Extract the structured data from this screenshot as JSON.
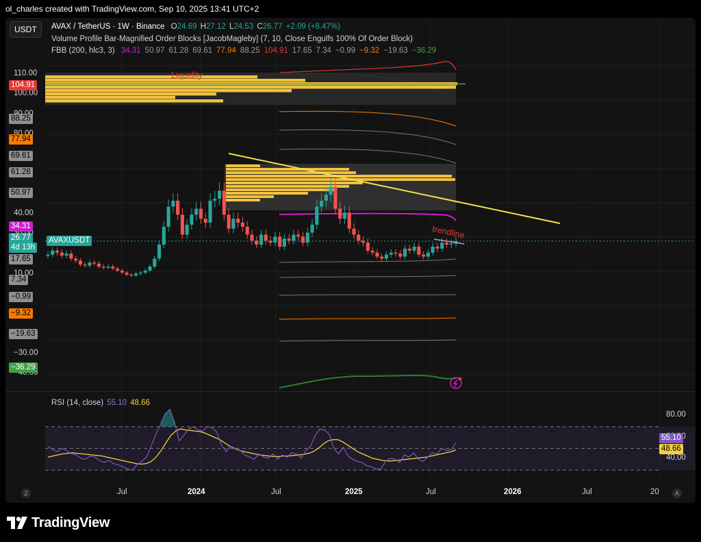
{
  "header": {
    "author_line": "ol_charles created with TradingView.com, Sep 10, 2025 13:41 UTC+2"
  },
  "symbol_button": "USDT",
  "legend": {
    "symbol": "AVAX / TetherUS · 1W · Binance",
    "o_label": "O",
    "o": "24.69",
    "h_label": "H",
    "h": "27.12",
    "l_label": "L",
    "l": "24.53",
    "c_label": "C",
    "c": "26.77",
    "change": "+2.09 (+8.47%)",
    "indicator2": "Volume Profile Bar-Magnified Order Blocks [JacobMagleby] (7, 10, Close Engulfs 100% Of Order Block)",
    "fbb_name": "FBB (200, hlc3, 3)",
    "fbb_values": [
      {
        "v": "34.31",
        "c": "#c91fd0"
      },
      {
        "v": "50.97",
        "c": "#9a9a9a"
      },
      {
        "v": "61.28",
        "c": "#9a9a9a"
      },
      {
        "v": "69.61",
        "c": "#9a9a9a"
      },
      {
        "v": "77.94",
        "c": "#f57c00"
      },
      {
        "v": "88.25",
        "c": "#9a9a9a"
      },
      {
        "v": "104.91",
        "c": "#e53935"
      },
      {
        "v": "17.65",
        "c": "#9a9a9a"
      },
      {
        "v": "7.34",
        "c": "#9a9a9a"
      },
      {
        "v": "−0.99",
        "c": "#9a9a9a"
      },
      {
        "v": "−9.32",
        "c": "#f57c00"
      },
      {
        "v": "−19.63",
        "c": "#9a9a9a"
      },
      {
        "v": "−36.29",
        "c": "#43a047"
      }
    ]
  },
  "annotations": {
    "liquidity": "Liquidity",
    "trendline": "trendline"
  },
  "y_axis_labels": [
    {
      "text": "110.00",
      "v": 110
    },
    {
      "text": "100.00",
      "v": 100
    },
    {
      "text": "90.00",
      "v": 90
    },
    {
      "text": "80.00",
      "v": 80
    },
    {
      "text": "40.00",
      "v": 40
    },
    {
      "text": "30.00",
      "v": 30
    },
    {
      "text": "10.00",
      "v": 10
    },
    {
      "text": "−30.00",
      "v": -30
    },
    {
      "text": "−40.00",
      "v": -40
    }
  ],
  "price_badges": [
    {
      "text": "104.91",
      "v": 104.91,
      "bg": "#e53935",
      "fg": "#ffffff"
    },
    {
      "text": "88.25",
      "v": 88.25,
      "bg": "#8f8f8f",
      "fg": "#000000"
    },
    {
      "text": "77.94",
      "v": 77.94,
      "bg": "#f57c00",
      "fg": "#000000"
    },
    {
      "text": "69.61",
      "v": 69.61,
      "bg": "#8f8f8f",
      "fg": "#000000"
    },
    {
      "text": "61.28",
      "v": 61.28,
      "bg": "#8f8f8f",
      "fg": "#000000"
    },
    {
      "text": "50.97",
      "v": 50.97,
      "bg": "#8f8f8f",
      "fg": "#000000"
    },
    {
      "text": "34.31",
      "v": 34.31,
      "bg": "#c91fd0",
      "fg": "#ffffff"
    },
    {
      "text": "17.65",
      "v": 17.65,
      "bg": "#8f8f8f",
      "fg": "#000000"
    },
    {
      "text": "7.34",
      "v": 7.34,
      "bg": "#8f8f8f",
      "fg": "#000000"
    },
    {
      "text": "−0.99",
      "v": -0.99,
      "bg": "#8f8f8f",
      "fg": "#000000"
    },
    {
      "text": "−9.32",
      "v": -9.32,
      "bg": "#f57c00",
      "fg": "#000000"
    },
    {
      "text": "−19.63",
      "v": -19.63,
      "bg": "#8f8f8f",
      "fg": "#000000"
    },
    {
      "text": "−36.29",
      "v": -36.29,
      "bg": "#43a047",
      "fg": "#ffffff"
    }
  ],
  "last_price": {
    "price": "26.77",
    "countdown": "4d 13h",
    "symbol_tag": "AVAXUSDT",
    "bg": "#26a69a"
  },
  "rsi": {
    "name": "RSI (14, close)",
    "value": "55.10",
    "ma": "48.66",
    "axis_labels": [
      {
        "text": "80.00",
        "v": 80
      },
      {
        "text": "60.00",
        "v": 60
      },
      {
        "text": "40.00",
        "v": 40
      }
    ]
  },
  "x_axis": [
    {
      "text": "Jul",
      "bold": false
    },
    {
      "text": "2024",
      "bold": true
    },
    {
      "text": "Jul",
      "bold": false
    },
    {
      "text": "2025",
      "bold": true
    },
    {
      "text": "Jul",
      "bold": false
    },
    {
      "text": "2026",
      "bold": true
    },
    {
      "text": "Jul",
      "bold": false
    },
    {
      "text": "20",
      "bold": false
    }
  ],
  "corner_left": "Z",
  "corner_right": "A",
  "brand": "TradingView",
  "chart_data": {
    "type": "candlestick",
    "symbol": "AVAXUSDT",
    "timeframe": "1W",
    "price_range": [
      -45,
      118
    ],
    "grid": true,
    "closes": [
      20,
      22,
      21,
      19.5,
      20.5,
      18,
      17,
      15,
      14.5,
      16,
      15.5,
      14,
      13.5,
      14,
      13,
      12,
      11,
      10,
      9.5,
      10.5,
      11,
      12,
      14,
      18,
      25,
      34,
      44,
      47,
      40,
      30,
      35,
      40,
      43,
      38,
      36,
      47,
      48,
      52,
      40,
      33,
      38,
      36,
      34,
      30,
      27,
      25,
      30,
      27,
      26,
      29,
      24,
      28,
      27,
      30,
      29,
      26,
      31,
      35,
      44,
      47,
      50,
      54,
      43,
      38,
      41,
      33,
      30,
      27,
      26,
      22,
      21,
      19,
      18,
      20,
      21,
      20.5,
      19,
      23,
      22,
      24,
      20,
      19,
      21,
      24,
      23,
      26,
      25,
      25.5,
      26.77
    ],
    "levels": {
      "liquidity_line": 105.5,
      "trendline": {
        "from": {
          "date": "2024-03",
          "price": 63
        },
        "to": {
          "date": "2026-06",
          "price": 35
        }
      }
    },
    "rsi_series": [
      52,
      49,
      47,
      50,
      48,
      45,
      44,
      41,
      40,
      43,
      42,
      39,
      37,
      39,
      36,
      35,
      33,
      31,
      30,
      35,
      38,
      42,
      52,
      63,
      72,
      82,
      86,
      74,
      57,
      62,
      68,
      70,
      67,
      66,
      70,
      69,
      65,
      53,
      47,
      52,
      50,
      48,
      44,
      42,
      40,
      45,
      42,
      41,
      45,
      40,
      44,
      42,
      46,
      45,
      41,
      48,
      52,
      62,
      68,
      67,
      63,
      50,
      45,
      51,
      43,
      40,
      38,
      37,
      34,
      33,
      31,
      31,
      38,
      41,
      40,
      37,
      44,
      42,
      46,
      40,
      38,
      42,
      46,
      45,
      50,
      48,
      49,
      55.1
    ],
    "rsi_ma_series": [
      42,
      43,
      44,
      45,
      45.5,
      46,
      45.5,
      45,
      44.5,
      44,
      43.5,
      43,
      42,
      41,
      40,
      39,
      38,
      37,
      36,
      35.5,
      36,
      38,
      42,
      48,
      55,
      62,
      66,
      68,
      67,
      66.5,
      66,
      65.5,
      64,
      62,
      60,
      58,
      55,
      52,
      50,
      48,
      47,
      46,
      45,
      44,
      43.5,
      43,
      42.5,
      42.5,
      43,
      43,
      43.5,
      44,
      44.5,
      45.5,
      47,
      50,
      54,
      57,
      58,
      58,
      56,
      53,
      50,
      47,
      45,
      43,
      41,
      40,
      39,
      38.5,
      38.5,
      39,
      39.5,
      40,
      40.5,
      41,
      41.5,
      42,
      43,
      44,
      45,
      46,
      47,
      48.66
    ],
    "rsi_range": [
      20,
      90
    ]
  }
}
